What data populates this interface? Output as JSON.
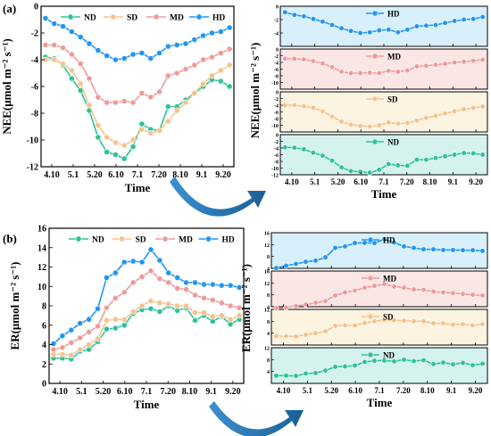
{
  "panel_labels": {
    "a": "(a)",
    "b": "(b)"
  },
  "colors": {
    "ND": "#2fc19a",
    "SD": "#f2c48d",
    "MD": "#ef9a9a",
    "HD": "#2196f3",
    "axis": "#000000",
    "arrow": "#1f6fa8"
  },
  "bg_colors": {
    "ND": "#d4f3ee",
    "SD": "#fdf3e1",
    "MD": "#fbe6e6",
    "HD": "#d8f0fb"
  },
  "x_tick_labels": [
    "4.10",
    "5.1",
    "5.20",
    "6.10",
    "7.1",
    "7.20",
    "8.10",
    "9.1",
    "9.20"
  ],
  "chart_data": [
    {
      "id": "a-main",
      "type": "line",
      "title": "",
      "xlabel": "Time",
      "ylabel": "NEE(μmol m⁻² s⁻¹)",
      "ylim": [
        -12,
        0
      ],
      "yticks": [
        0,
        -2,
        -4,
        -6,
        -8,
        -10,
        -12
      ],
      "legend": "top",
      "n_points": 22,
      "series": [
        {
          "name": "ND",
          "values": [
            -3.8,
            -3.9,
            -4.4,
            -5.4,
            -6.3,
            -7.8,
            -9.8,
            -10.9,
            -11.1,
            -11.4,
            -10.5,
            -8.8,
            -9.2,
            -9.3,
            -7.5,
            -7.5,
            -7.0,
            -6.5,
            -6.0,
            -5.5,
            -5.6,
            -6.0
          ]
        },
        {
          "name": "SD",
          "values": [
            -4.0,
            -4.0,
            -4.3,
            -4.8,
            -5.8,
            -7.4,
            -8.9,
            -9.8,
            -10.2,
            -10.4,
            -10.0,
            -9.2,
            -9.5,
            -9.3,
            -8.6,
            -7.8,
            -7.2,
            -6.5,
            -5.8,
            -5.2,
            -4.8,
            -4.4
          ]
        },
        {
          "name": "MD",
          "values": [
            -2.9,
            -2.9,
            -3.1,
            -3.6,
            -4.3,
            -5.4,
            -6.8,
            -7.2,
            -7.2,
            -7.1,
            -7.2,
            -6.5,
            -6.8,
            -6.4,
            -5.2,
            -5.0,
            -4.7,
            -4.4,
            -4.0,
            -3.8,
            -3.5,
            -3.2
          ]
        },
        {
          "name": "HD",
          "values": [
            -0.9,
            -1.3,
            -1.5,
            -1.9,
            -2.3,
            -2.8,
            -3.3,
            -3.7,
            -4.0,
            -3.9,
            -3.6,
            -3.5,
            -3.9,
            -3.5,
            -3.0,
            -2.9,
            -2.8,
            -2.5,
            -2.2,
            -2.0,
            -1.9,
            -1.6
          ]
        }
      ]
    },
    {
      "id": "a-small",
      "type": "line",
      "xlabel": "Time",
      "ylabel": "NEE(μmol m⁻² s⁻¹)",
      "panels": [
        {
          "series": "HD",
          "ylim": [
            -6,
            0
          ],
          "yticks": [
            0,
            -2,
            -4
          ]
        },
        {
          "series": "MD",
          "ylim": [
            -12,
            0
          ],
          "yticks": [
            0,
            -2,
            -4,
            -6,
            -8,
            -10
          ]
        },
        {
          "series": "SD",
          "ylim": [
            -12,
            0
          ],
          "yticks": [
            0,
            -2,
            -4,
            -6,
            -8,
            -10
          ]
        },
        {
          "series": "ND",
          "ylim": [
            -12,
            0
          ],
          "yticks": [
            0,
            -2,
            -4,
            -6,
            -8,
            -10,
            -12
          ]
        }
      ]
    },
    {
      "id": "b-main",
      "type": "line",
      "title": "",
      "xlabel": "Time",
      "ylabel": "ER(μmol m⁻² s⁻¹)",
      "ylim": [
        0,
        16
      ],
      "yticks": [
        0,
        2,
        4,
        6,
        8,
        10,
        12,
        14,
        16
      ],
      "legend": "top",
      "n_points": 22,
      "series": [
        {
          "name": "ND",
          "values": [
            2.6,
            2.6,
            2.5,
            3.3,
            3.5,
            4.3,
            5.6,
            5.7,
            6.0,
            7.2,
            7.6,
            7.7,
            7.4,
            8.0,
            7.5,
            7.8,
            6.5,
            7.0,
            6.4,
            6.9,
            6.1,
            6.6
          ]
        },
        {
          "name": "SD",
          "values": [
            3.0,
            3.0,
            2.9,
            3.5,
            4.0,
            4.6,
            6.5,
            6.6,
            6.6,
            7.4,
            8.0,
            8.5,
            8.3,
            8.2,
            8.0,
            8.0,
            7.3,
            7.3,
            6.9,
            7.0,
            6.6,
            7.0
          ]
        },
        {
          "name": "MD",
          "values": [
            3.5,
            3.7,
            4.2,
            4.7,
            5.3,
            5.9,
            7.8,
            8.8,
            9.4,
            10.4,
            11.0,
            11.6,
            10.8,
            10.4,
            9.8,
            9.7,
            9.1,
            8.8,
            8.6,
            8.3,
            8.0,
            7.8
          ]
        },
        {
          "name": "HD",
          "values": [
            4.1,
            4.9,
            5.5,
            6.2,
            6.6,
            7.7,
            10.9,
            11.4,
            12.5,
            12.6,
            12.5,
            13.8,
            12.7,
            11.4,
            10.9,
            10.4,
            10.4,
            10.2,
            10.2,
            10.1,
            10.1,
            9.9
          ]
        }
      ]
    },
    {
      "id": "b-small",
      "type": "line",
      "xlabel": "Time",
      "ylabel": "ER(μmol m⁻² s⁻¹)",
      "panels": [
        {
          "series": "HD",
          "ylim": [
            4,
            16
          ],
          "yticks": [
            4,
            8,
            12,
            16
          ]
        },
        {
          "series": "MD",
          "ylim": [
            4,
            16
          ],
          "yticks": [
            4,
            8,
            12,
            16
          ]
        },
        {
          "series": "SD",
          "ylim": [
            0,
            12
          ],
          "yticks": [
            4,
            8,
            12
          ]
        },
        {
          "series": "ND",
          "ylim": [
            0,
            12
          ],
          "yticks": [
            4,
            8,
            12
          ]
        }
      ]
    }
  ]
}
